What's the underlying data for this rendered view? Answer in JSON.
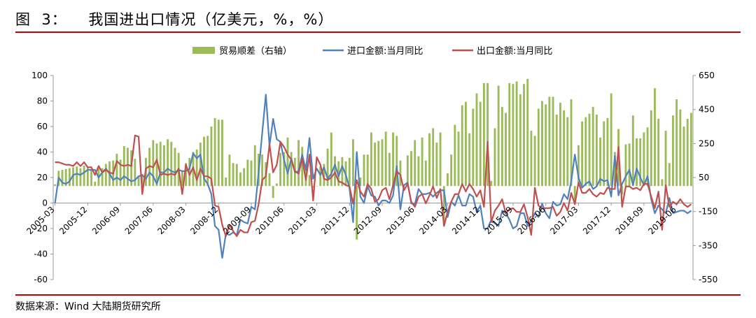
{
  "figure_title": "图  3：    我国进出口情况（亿美元，%，%）",
  "source": "数据来源：Wind    大陆期货研究所",
  "chart_data": {
    "type": "bar+line",
    "legend": [
      "贸易顺差（右轴）",
      "进口金额:当月同比",
      "出口金额:当月同比"
    ],
    "colors": {
      "bar": "#9bbb59",
      "import": "#4f81bd",
      "export": "#c0504d"
    },
    "left_axis": {
      "min": -60,
      "max": 100,
      "ticks": [
        "100",
        "80",
        "60",
        "40",
        "20",
        "0",
        "-20",
        "-40",
        "-60"
      ]
    },
    "right_axis": {
      "min": -550,
      "max": 650,
      "ticks": [
        "650",
        "450",
        "250",
        "50",
        "-150",
        "-350",
        "-550"
      ]
    },
    "x_ticks": [
      "2005-03",
      "2005-12",
      "2006-09",
      "2007-06",
      "2008-03",
      "2008-12",
      "2009-09",
      "2010-06",
      "2011-03",
      "2011-12",
      "2012-09",
      "2013-06",
      "2014-03",
      "2014-12",
      "2015-09",
      "2016-06",
      "2017-03",
      "2017-12",
      "2018-09",
      "2019-06"
    ],
    "x_start": "2005-03",
    "x_end": "2019-10",
    "trade_balance": [
      {
        "from": "2005-03",
        "to": "2005-12",
        "values": [
          10,
          90,
          95,
          100,
          105,
          110,
          115,
          105,
          120,
          110
        ]
      },
      {
        "from": "2006-01",
        "to": "2006-12",
        "values": [
          100,
          25,
          110,
          105,
          130,
          145,
          150,
          190,
          155,
          235,
          225,
          210
        ]
      },
      {
        "from": "2007-01",
        "to": "2007-12",
        "values": [
          160,
          60,
          70,
          165,
          225,
          270,
          250,
          260,
          240,
          275,
          260,
          225
        ]
      },
      {
        "from": "2008-01",
        "to": "2008-12",
        "values": [
          195,
          85,
          135,
          165,
          200,
          215,
          255,
          290,
          295,
          350,
          400,
          390
        ]
      },
      {
        "from": "2009-01",
        "to": "2009-12",
        "values": [
          390,
          50,
          185,
          135,
          130,
          80,
          105,
          155,
          150,
          240,
          190,
          185
        ]
      },
      {
        "from": "2010-01",
        "to": "2010-12",
        "values": [
          140,
          75,
          -70,
          15,
          195,
          200,
          285,
          200,
          165,
          270,
          230,
          130
        ]
      },
      {
        "from": "2011-01",
        "to": "2011-12",
        "values": [
          65,
          -10,
          0,
          115,
          130,
          220,
          315,
          175,
          145,
          170,
          145,
          165
        ]
      },
      {
        "from": "2012-01",
        "to": "2012-12",
        "values": [
          275,
          -315,
          50,
          185,
          185,
          315,
          255,
          265,
          275,
          320,
          195,
          315
        ]
      },
      {
        "from": "2013-01",
        "to": "2013-12",
        "values": [
          295,
          150,
          0,
          180,
          205,
          270,
          175,
          285,
          150,
          310,
          340,
          255
        ]
      },
      {
        "from": "2014-01",
        "to": "2014-12",
        "values": [
          315,
          -230,
          75,
          185,
          360,
          320,
          475,
          495,
          310,
          455,
          545,
          495
        ]
      },
      {
        "from": "2015-01",
        "to": "2015-12",
        "values": [
          605,
          605,
          30,
          340,
          590,
          465,
          430,
          605,
          600,
          615,
          540,
          600
        ]
      },
      {
        "from": "2016-01",
        "to": "2016-12",
        "values": [
          630,
          325,
          295,
          455,
          500,
          480,
          525,
          525,
          420,
          490,
          445,
          405
        ]
      },
      {
        "from": "2017-01",
        "to": "2017-12",
        "values": [
          510,
          -90,
          240,
          380,
          405,
          425,
          465,
          420,
          285,
          380,
          400,
          545
        ]
      },
      {
        "from": "2018-01",
        "to": "2018-12",
        "values": [
          200,
          335,
          -50,
          245,
          250,
          415,
          280,
          280,
          315,
          345,
          445,
          575
        ]
      },
      {
        "from": "2019-01",
        "to": "2019-10",
        "values": [
          395,
          40,
          325,
          135,
          415,
          510,
          450,
          350,
          395,
          430
        ]
      }
    ],
    "import_yoy": [
      {
        "from": "2005-03",
        "to": "2005-12",
        "values": [
          0,
          20,
          16,
          15,
          17,
          22,
          23,
          22,
          24,
          26
        ]
      },
      {
        "from": "2006-01",
        "to": "2006-12",
        "values": [
          26,
          26,
          20,
          24,
          27,
          23,
          18,
          20,
          18,
          21,
          19,
          17
        ]
      },
      {
        "from": "2007-01",
        "to": "2007-12",
        "values": [
          18,
          21,
          22,
          19,
          24,
          21,
          15,
          24,
          24,
          27,
          25,
          24
        ]
      },
      {
        "from": "2008-01",
        "to": "2008-12",
        "values": [
          26,
          25,
          25,
          27,
          39,
          35,
          38,
          19,
          15,
          7,
          -18,
          -21
        ]
      },
      {
        "from": "2009-01",
        "to": "2009-12",
        "values": [
          -43,
          -24,
          -25,
          -23,
          -25,
          -13,
          -15,
          -16,
          -3,
          -5,
          24,
          55
        ]
      },
      {
        "from": "2010-01",
        "to": "2010-12",
        "values": [
          85,
          45,
          66,
          50,
          48,
          34,
          23,
          35,
          24,
          25,
          38,
          26
        ]
      },
      {
        "from": "2011-01",
        "to": "2011-12",
        "values": [
          51,
          19,
          27,
          22,
          28,
          19,
          23,
          30,
          21,
          29,
          22,
          12
        ]
      },
      {
        "from": "2012-01",
        "to": "2012-12",
        "values": [
          -15,
          40,
          5,
          0,
          13,
          6,
          5,
          -2,
          2,
          2,
          0,
          6
        ]
      },
      {
        "from": "2013-01",
        "to": "2013-12",
        "values": [
          29,
          -5,
          14,
          16,
          -0.3,
          -1,
          11,
          7,
          7,
          8,
          5,
          8
        ]
      },
      {
        "from": "2014-01",
        "to": "2014-12",
        "values": [
          10,
          10,
          -11,
          1,
          -2,
          6,
          -2,
          -2,
          7,
          5,
          -7,
          -2
        ]
      },
      {
        "from": "2015-01",
        "to": "2015-12",
        "values": [
          -20,
          -20,
          -13,
          -16,
          -18,
          -6,
          -8,
          -13,
          -20,
          -18,
          -8,
          -8
        ]
      },
      {
        "from": "2016-01",
        "to": "2016-12",
        "values": [
          -18,
          -14,
          -8,
          -11,
          -0.4,
          -8,
          -12,
          1,
          -2,
          -1,
          7,
          3
        ]
      },
      {
        "from": "2017-01",
        "to": "2017-12",
        "values": [
          17,
          38,
          20,
          12,
          15,
          17,
          11,
          13,
          19,
          17,
          18,
          5
        ]
      },
      {
        "from": "2018-01",
        "to": "2018-12",
        "values": [
          37,
          6,
          15,
          21,
          26,
          14,
          27,
          20,
          14,
          21,
          3,
          -8
        ]
      },
      {
        "from": "2019-01",
        "to": "2019-10",
        "values": [
          -2,
          -5,
          -8,
          4,
          -8,
          -7,
          -6,
          -6,
          -8,
          -6
        ]
      }
    ],
    "export_yoy": [
      {
        "from": "2005-03",
        "to": "2005-12",
        "values": [
          32,
          32,
          31,
          30,
          30,
          29,
          32,
          29,
          32,
          28
        ]
      },
      {
        "from": "2006-01",
        "to": "2006-12",
        "values": [
          28,
          22,
          29,
          24,
          26,
          24,
          23,
          33,
          30,
          29,
          30,
          29
        ]
      },
      {
        "from": "2007-01",
        "to": "2007-12",
        "values": [
          53,
          52,
          7,
          27,
          29,
          28,
          34,
          22,
          23,
          22,
          23,
          22
        ]
      },
      {
        "from": "2008-01",
        "to": "2008-12",
        "values": [
          27,
          7,
          30,
          22,
          28,
          18,
          27,
          21,
          21,
          19,
          -2,
          -3
        ]
      },
      {
        "from": "2009-01",
        "to": "2009-12",
        "values": [
          -17,
          -26,
          -17,
          -22,
          -26,
          -21,
          -23,
          -23,
          -15,
          -14,
          -1,
          18
        ]
      },
      {
        "from": "2010-01",
        "to": "2010-12",
        "values": [
          21,
          46,
          24,
          30,
          48,
          44,
          38,
          34,
          25,
          23,
          35,
          18
        ]
      },
      {
        "from": "2011-01",
        "to": "2011-12",
        "values": [
          38,
          2,
          36,
          30,
          19,
          18,
          20,
          24,
          17,
          16,
          14,
          13
        ]
      },
      {
        "from": "2012-01",
        "to": "2012-12",
        "values": [
          -0.5,
          18,
          9,
          5,
          15,
          11,
          1,
          3,
          10,
          12,
          3,
          14
        ]
      },
      {
        "from": "2013-01",
        "to": "2013-12",
        "values": [
          25,
          22,
          10,
          15,
          1,
          -3,
          5,
          7,
          -0.3,
          6,
          13,
          4
        ]
      },
      {
        "from": "2014-01",
        "to": "2014-12",
        "values": [
          11,
          -18,
          -7,
          1,
          7,
          7,
          15,
          9,
          15,
          11,
          5,
          10
        ]
      },
      {
        "from": "2015-01",
        "to": "2015-12",
        "values": [
          -3,
          48,
          -15,
          -6,
          -2,
          3,
          -8,
          -5,
          -4,
          -7,
          -7,
          -1
        ]
      },
      {
        "from": "2016-01",
        "to": "2016-12",
        "values": [
          -11,
          -25,
          12,
          -2,
          -4,
          -4,
          -4,
          -3,
          -10,
          -7,
          0,
          -6
        ]
      },
      {
        "from": "2017-01",
        "to": "2017-12",
        "values": [
          8,
          -1,
          16,
          8,
          8,
          11,
          7,
          5,
          8,
          7,
          12,
          11
        ]
      },
      {
        "from": "2018-01",
        "to": "2018-12",
        "values": [
          11,
          44,
          -3,
          13,
          13,
          11,
          12,
          10,
          15,
          15,
          5,
          -4
        ]
      },
      {
        "from": "2019-01",
        "to": "2019-10",
        "values": [
          9,
          -21,
          14,
          -3,
          1,
          -1,
          3,
          -1,
          -3,
          -1
        ]
      }
    ]
  }
}
